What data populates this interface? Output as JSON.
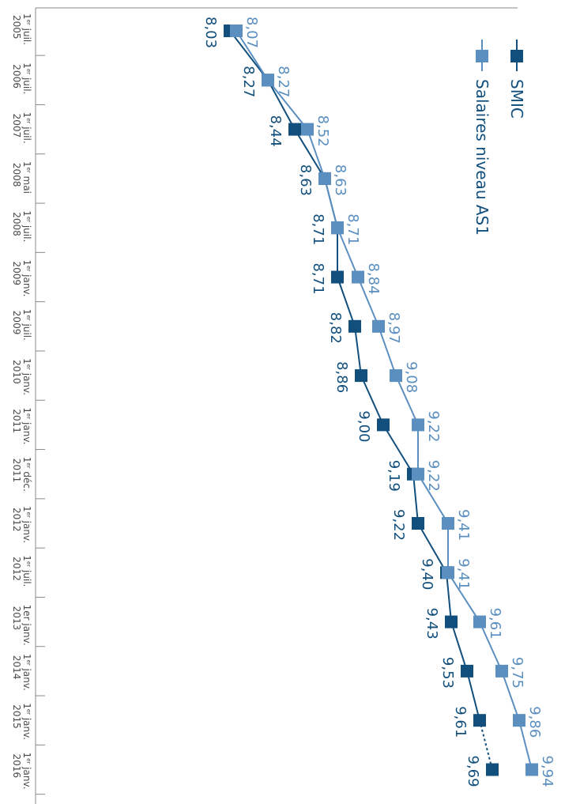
{
  "chart_data": {
    "type": "line",
    "orientation": "rotated-90-clockwise",
    "categories": [
      {
        "l1": "1",
        "sup": "er",
        "l1b": " juil.",
        "l2": "2005"
      },
      {
        "l1": "1",
        "sup": "er",
        "l1b": " juil.",
        "l2": "2006"
      },
      {
        "l1": "1",
        "sup": "er",
        "l1b": " juil.",
        "l2": "2007"
      },
      {
        "l1": "1",
        "sup": "er",
        "l1b": " mai",
        "l2": "2008"
      },
      {
        "l1": "1",
        "sup": "er",
        "l1b": " juil.",
        "l2": "2008"
      },
      {
        "l1": "1",
        "sup": "er",
        "l1b": " janv.",
        "l2": "2009"
      },
      {
        "l1": "1",
        "sup": "er",
        "l1b": " juil.",
        "l2": "2009"
      },
      {
        "l1": "1",
        "sup": "er",
        "l1b": " janv.",
        "l2": "2010"
      },
      {
        "l1": "1",
        "sup": "er",
        "l1b": " janv.",
        "l2": "2011"
      },
      {
        "l1": "1",
        "sup": "er",
        "l1b": " déc.",
        "l2": "2011"
      },
      {
        "l1": "1",
        "sup": "er",
        "l1b": " janv.",
        "l2": "2012"
      },
      {
        "l1": "1",
        "sup": "er",
        "l1b": " juil.",
        "l2": "2012"
      },
      {
        "l1": "1er janv.",
        "sup": "",
        "l1b": "",
        "l2": "2013"
      },
      {
        "l1": "1",
        "sup": "er",
        "l1b": " janv.",
        "l2": "2014"
      },
      {
        "l1": "1",
        "sup": "er",
        "l1b": " janv.",
        "l2": "2015"
      },
      {
        "l1": "1",
        "sup": "er",
        "l1b": " janv.",
        "l2": "2016"
      }
    ],
    "series": [
      {
        "name": "SMIC",
        "color": "#124f7c",
        "values": [
          8.03,
          8.27,
          8.44,
          8.63,
          8.71,
          8.71,
          8.82,
          8.86,
          9.0,
          9.19,
          9.22,
          9.4,
          9.43,
          9.53,
          9.61,
          9.69
        ],
        "labels": [
          "8,03",
          "8,27",
          "8,44",
          "8,63",
          "8,71",
          "8,71",
          "8,82",
          "8,86",
          "9,00",
          "9,19",
          "9,22",
          "9,40",
          "9,43",
          "9,53",
          "9,61",
          "9,69"
        ],
        "last_segment_dashed": true
      },
      {
        "name": "Salaires niveau AS1",
        "color": "#5b8fbf",
        "values": [
          8.07,
          8.27,
          8.52,
          8.63,
          8.71,
          8.84,
          8.97,
          9.08,
          9.22,
          9.22,
          9.41,
          9.41,
          9.61,
          9.75,
          9.86,
          9.94
        ],
        "labels": [
          "8,07",
          "8,27",
          "8,52",
          "8,63",
          "8,71",
          "8,84",
          "8,97",
          "9,08",
          "9,22",
          "9,22",
          "9,41",
          "9,41",
          "9,61",
          "9,75",
          "9,86",
          "9,94"
        ]
      }
    ],
    "legend": [
      "SMIC",
      "Salaires niveau AS1"
    ],
    "legend_position": "top-right",
    "grid": false,
    "ylim": [
      6.8,
      10.2
    ]
  }
}
